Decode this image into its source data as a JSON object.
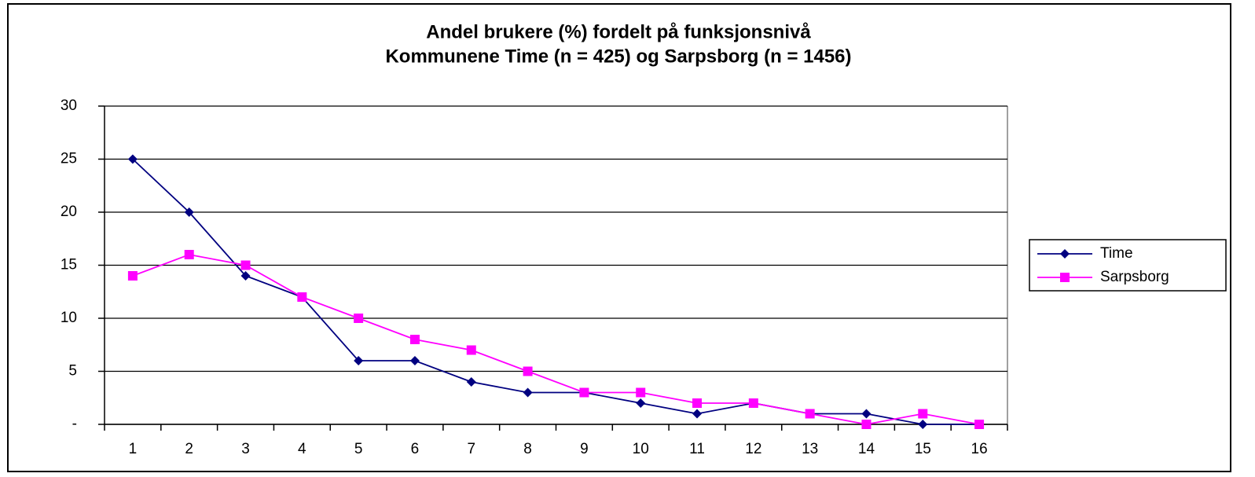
{
  "chart_data": {
    "type": "line",
    "title": "Andel brukere (%) fordelt på funksjonsnivå",
    "subtitle": "Kommunene Time (n = 425) og Sarpsborg (n = 1456)",
    "categories": [
      "1",
      "2",
      "3",
      "4",
      "5",
      "6",
      "7",
      "8",
      "9",
      "10",
      "11",
      "12",
      "13",
      "14",
      "15",
      "16"
    ],
    "series": [
      {
        "name": "Time",
        "color": "#000080",
        "marker": "diamond",
        "values": [
          25,
          20,
          14,
          12,
          6,
          6,
          4,
          3,
          3,
          2,
          1,
          2,
          1,
          1,
          0,
          0
        ]
      },
      {
        "name": "Sarpsborg",
        "color": "#ff00ff",
        "marker": "square",
        "values": [
          14,
          16,
          15,
          12,
          10,
          8,
          7,
          5,
          3,
          3,
          2,
          2,
          1,
          0,
          1,
          0
        ]
      }
    ],
    "ylim": [
      0,
      30
    ],
    "yticks": [
      {
        "value": 0,
        "label": "-"
      },
      5,
      10,
      15,
      20,
      25,
      30
    ],
    "grid": true,
    "legend": "right"
  }
}
